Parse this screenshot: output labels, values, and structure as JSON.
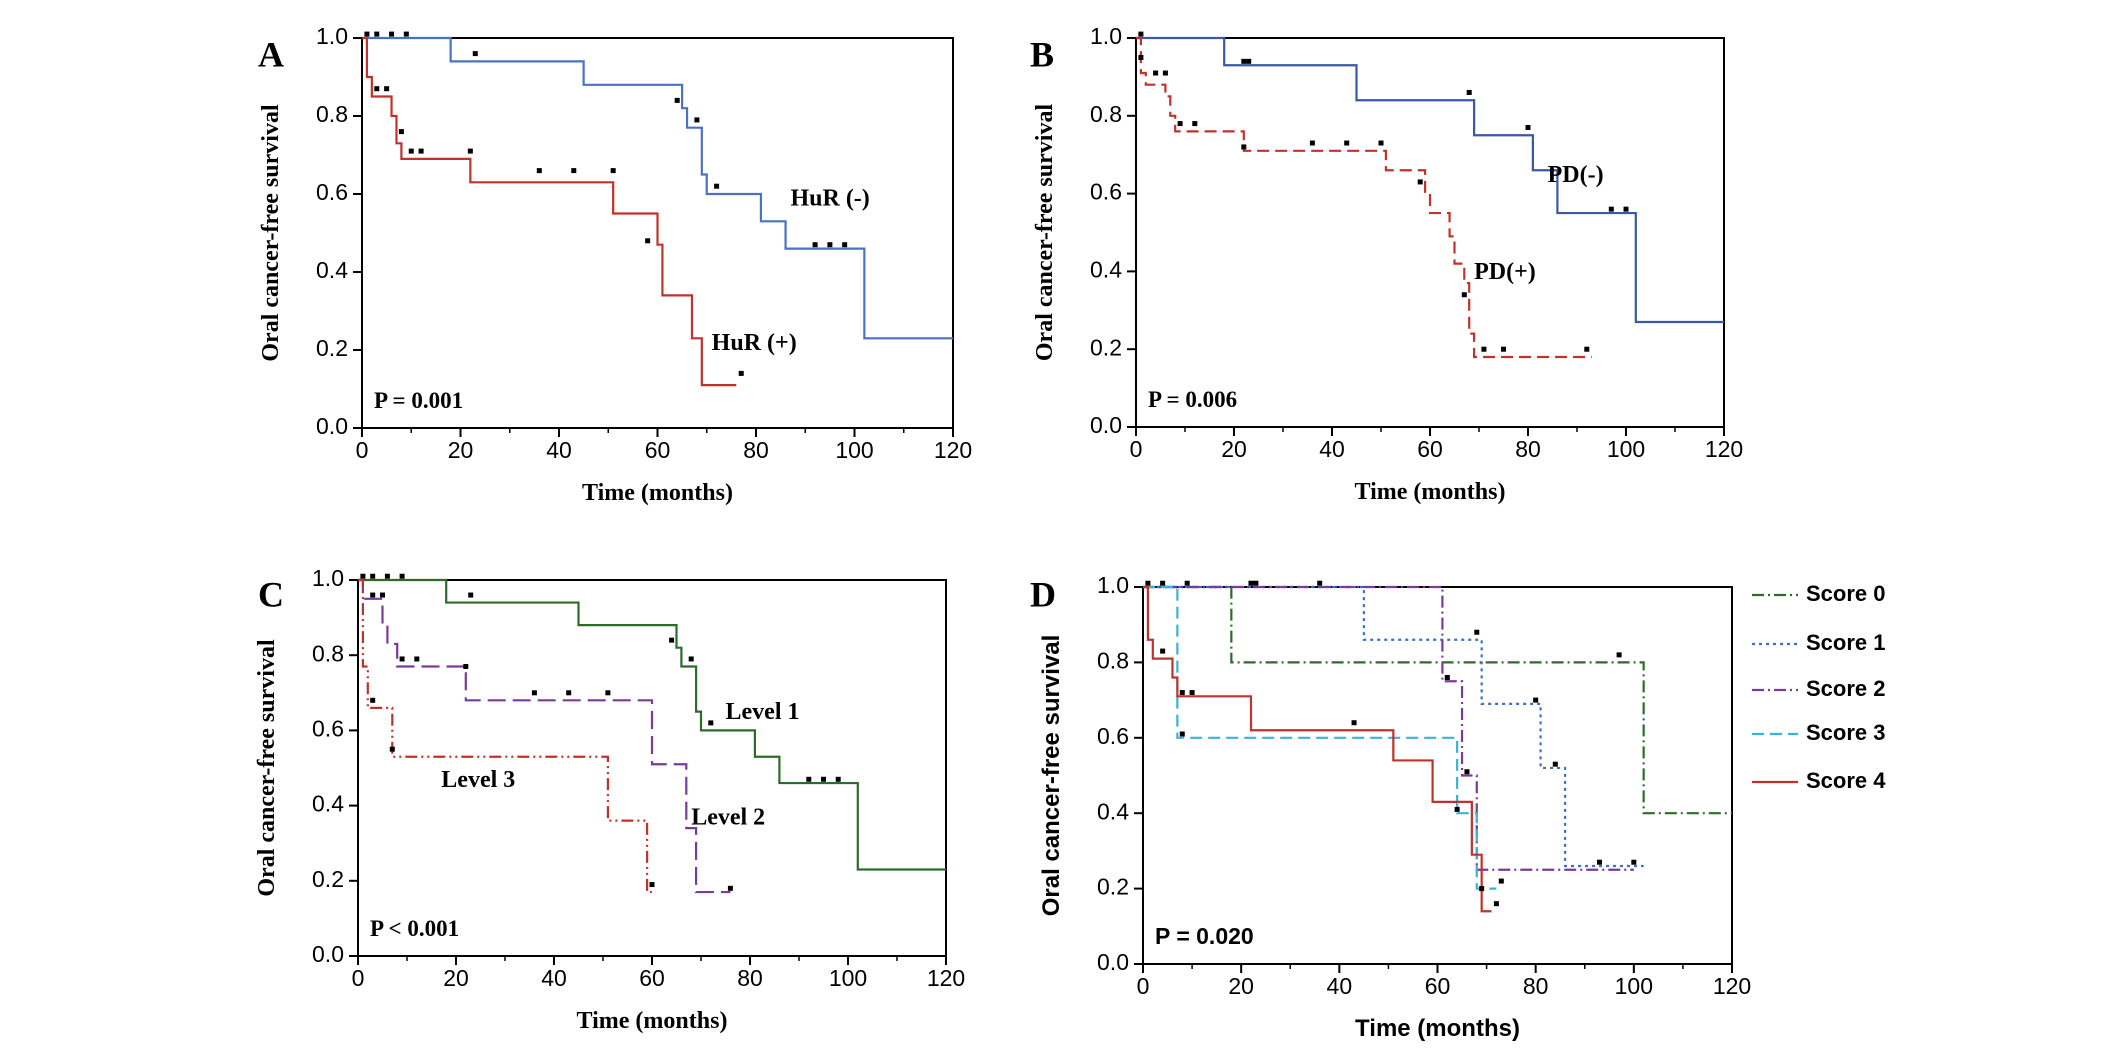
{
  "chart_data": [
    {
      "panel": "A",
      "type": "line",
      "subtype": "kaplan-meier-step",
      "xlabel": "Time (months)",
      "ylabel": "Oral cancer-free survival",
      "xlim": [
        0,
        120
      ],
      "ylim": [
        0,
        1.0
      ],
      "xticks": [
        "0",
        "20",
        "40",
        "60",
        "80",
        "100",
        "120"
      ],
      "yticks": [
        "0.0",
        "0.2",
        "0.4",
        "0.6",
        "0.8",
        "1.0"
      ],
      "pvalue": "P = 0.001",
      "series": [
        {
          "name": "HuR (-)",
          "label": "HuR (-)",
          "color": "#4a72c4",
          "dash": "solid",
          "label_at": [
            87,
            0.57
          ],
          "steps": [
            [
              0,
              1.0
            ],
            [
              18,
              0.94
            ],
            [
              45,
              0.88
            ],
            [
              65,
              0.82
            ],
            [
              66,
              0.77
            ],
            [
              69,
              0.65
            ],
            [
              70,
              0.6
            ],
            [
              81,
              0.53
            ],
            [
              86,
              0.46
            ],
            [
              102,
              0.23
            ],
            [
              120,
              0.23
            ]
          ],
          "censors": [
            [
              1,
              1.01
            ],
            [
              3,
              1.01
            ],
            [
              6,
              1.01
            ],
            [
              9,
              1.01
            ],
            [
              23,
              0.96
            ],
            [
              64,
              0.84
            ],
            [
              68,
              0.79
            ],
            [
              72,
              0.62
            ],
            [
              92,
              0.47
            ],
            [
              95,
              0.47
            ],
            [
              98,
              0.47
            ]
          ]
        },
        {
          "name": "HuR (+)",
          "label": "HuR (+)",
          "color": "#c0322b",
          "dash": "solid",
          "label_at": [
            71,
            0.2
          ],
          "steps": [
            [
              0,
              1.0
            ],
            [
              1,
              0.9
            ],
            [
              2,
              0.85
            ],
            [
              6,
              0.8
            ],
            [
              7,
              0.73
            ],
            [
              8,
              0.69
            ],
            [
              22,
              0.63
            ],
            [
              51,
              0.55
            ],
            [
              60,
              0.47
            ],
            [
              61,
              0.34
            ],
            [
              67,
              0.23
            ],
            [
              69,
              0.11
            ],
            [
              76,
              0.11
            ]
          ],
          "censors": [
            [
              3,
              0.87
            ],
            [
              5,
              0.87
            ],
            [
              8,
              0.76
            ],
            [
              10,
              0.71
            ],
            [
              12,
              0.71
            ],
            [
              22,
              0.71
            ],
            [
              36,
              0.66
            ],
            [
              43,
              0.66
            ],
            [
              51,
              0.66
            ],
            [
              58,
              0.48
            ],
            [
              77,
              0.14
            ]
          ]
        }
      ]
    },
    {
      "panel": "B",
      "type": "line",
      "subtype": "kaplan-meier-step",
      "xlabel": "Time (months)",
      "ylabel": "Oral cancer-free survival",
      "xlim": [
        0,
        120
      ],
      "ylim": [
        0,
        1.0
      ],
      "xticks": [
        "0",
        "20",
        "40",
        "60",
        "80",
        "100",
        "120"
      ],
      "yticks": [
        "0.0",
        "0.2",
        "0.4",
        "0.6",
        "0.8",
        "1.0"
      ],
      "pvalue": "P = 0.006",
      "series": [
        {
          "name": "PD(-)",
          "label": "PD(-)",
          "color": "#3a57a8",
          "dash": "solid",
          "label_at": [
            84,
            0.63
          ],
          "steps": [
            [
              0,
              1.0
            ],
            [
              18,
              0.93
            ],
            [
              45,
              0.84
            ],
            [
              69,
              0.75
            ],
            [
              81,
              0.66
            ],
            [
              86,
              0.55
            ],
            [
              102,
              0.27
            ],
            [
              120,
              0.27
            ]
          ],
          "censors": [
            [
              1,
              1.01
            ],
            [
              22,
              0.94
            ],
            [
              23,
              0.94
            ],
            [
              68,
              0.86
            ],
            [
              80,
              0.77
            ],
            [
              97,
              0.56
            ],
            [
              100,
              0.56
            ]
          ]
        },
        {
          "name": "PD(+)",
          "label": "PD(+)",
          "color": "#c0322b",
          "dash": "dashed",
          "label_at": [
            69,
            0.38
          ],
          "steps": [
            [
              0,
              1.0
            ],
            [
              1,
              0.91
            ],
            [
              2,
              0.88
            ],
            [
              6,
              0.85
            ],
            [
              7,
              0.8
            ],
            [
              8,
              0.76
            ],
            [
              22,
              0.71
            ],
            [
              51,
              0.66
            ],
            [
              59,
              0.6
            ],
            [
              60,
              0.55
            ],
            [
              64,
              0.49
            ],
            [
              65,
              0.42
            ],
            [
              67,
              0.37
            ],
            [
              68,
              0.24
            ],
            [
              69,
              0.18
            ],
            [
              93,
              0.18
            ]
          ],
          "censors": [
            [
              1,
              0.95
            ],
            [
              4,
              0.91
            ],
            [
              6,
              0.91
            ],
            [
              9,
              0.78
            ],
            [
              12,
              0.78
            ],
            [
              22,
              0.72
            ],
            [
              36,
              0.73
            ],
            [
              43,
              0.73
            ],
            [
              50,
              0.73
            ],
            [
              58,
              0.63
            ],
            [
              67,
              0.34
            ],
            [
              71,
              0.2
            ],
            [
              75,
              0.2
            ],
            [
              92,
              0.2
            ]
          ]
        }
      ]
    },
    {
      "panel": "C",
      "type": "line",
      "subtype": "kaplan-meier-step",
      "xlabel": "Time (months)",
      "ylabel": "Oral cancer-free survival",
      "xlim": [
        0,
        120
      ],
      "ylim": [
        0,
        1.0
      ],
      "xticks": [
        "0",
        "20",
        "40",
        "60",
        "80",
        "100",
        "120"
      ],
      "yticks": [
        "0.0",
        "0.2",
        "0.4",
        "0.6",
        "0.8",
        "1.0"
      ],
      "pvalue": "P < 0.001",
      "series": [
        {
          "name": "Level 1",
          "label": "Level 1",
          "color": "#2e6b2a",
          "dash": "solid",
          "label_at": [
            75,
            0.63
          ],
          "steps": [
            [
              0,
              1.0
            ],
            [
              18,
              0.94
            ],
            [
              45,
              0.88
            ],
            [
              65,
              0.82
            ],
            [
              66,
              0.77
            ],
            [
              69,
              0.65
            ],
            [
              70,
              0.6
            ],
            [
              81,
              0.53
            ],
            [
              86,
              0.46
            ],
            [
              102,
              0.23
            ],
            [
              120,
              0.23
            ]
          ],
          "censors": [
            [
              1,
              1.01
            ],
            [
              3,
              1.01
            ],
            [
              6,
              1.01
            ],
            [
              9,
              1.01
            ],
            [
              23,
              0.96
            ],
            [
              64,
              0.84
            ],
            [
              68,
              0.79
            ],
            [
              72,
              0.62
            ],
            [
              92,
              0.47
            ],
            [
              95,
              0.47
            ],
            [
              98,
              0.47
            ]
          ]
        },
        {
          "name": "Level 2",
          "label": "Level 2",
          "color": "#7a3a9c",
          "dash": "longdash",
          "label_at": [
            68,
            0.35
          ],
          "steps": [
            [
              0,
              1.0
            ],
            [
              1,
              0.95
            ],
            [
              5,
              0.88
            ],
            [
              6,
              0.83
            ],
            [
              8,
              0.77
            ],
            [
              22,
              0.68
            ],
            [
              60,
              0.51
            ],
            [
              67,
              0.34
            ],
            [
              69,
              0.17
            ],
            [
              76,
              0.17
            ]
          ],
          "censors": [
            [
              3,
              0.96
            ],
            [
              5,
              0.96
            ],
            [
              9,
              0.79
            ],
            [
              12,
              0.79
            ],
            [
              22,
              0.77
            ],
            [
              36,
              0.7
            ],
            [
              43,
              0.7
            ],
            [
              51,
              0.7
            ],
            [
              76,
              0.18
            ]
          ]
        },
        {
          "name": "Level 3",
          "label": "Level 3",
          "color": "#c0322b",
          "dash": "dashdotdot",
          "label_at": [
            17,
            0.45
          ],
          "steps": [
            [
              0,
              1.0
            ],
            [
              1,
              0.77
            ],
            [
              2,
              0.66
            ],
            [
              7,
              0.53
            ],
            [
              51,
              0.36
            ],
            [
              59,
              0.17
            ],
            [
              60,
              0.17
            ]
          ],
          "censors": [
            [
              3,
              0.68
            ],
            [
              7,
              0.55
            ],
            [
              60,
              0.19
            ]
          ]
        }
      ]
    },
    {
      "panel": "D",
      "type": "line",
      "subtype": "kaplan-meier-step",
      "xlabel": "Time (months)",
      "ylabel": "Oral cancer-free survival",
      "xlim": [
        0,
        120
      ],
      "ylim": [
        0,
        1.0
      ],
      "xticks": [
        "0",
        "20",
        "40",
        "60",
        "80",
        "100",
        "120"
      ],
      "yticks": [
        "0.0",
        "0.2",
        "0.4",
        "0.6",
        "0.8",
        "1.0"
      ],
      "pvalue": "P = 0.020",
      "legend_position": "right",
      "series": [
        {
          "name": "Score 0",
          "color": "#2e6b2a",
          "dash": "dashdot",
          "steps": [
            [
              0,
              1.0
            ],
            [
              18,
              0.8
            ],
            [
              102,
              0.4
            ],
            [
              120,
              0.4
            ]
          ],
          "censors": [
            [
              97,
              0.82
            ]
          ]
        },
        {
          "name": "Score 1",
          "color": "#3a6fc4",
          "dash": "dotted",
          "steps": [
            [
              0,
              1.0
            ],
            [
              45,
              0.86
            ],
            [
              69,
              0.69
            ],
            [
              81,
              0.52
            ],
            [
              86,
              0.26
            ],
            [
              102,
              0.26
            ]
          ],
          "censors": [
            [
              1,
              1.01
            ],
            [
              23,
              1.01
            ],
            [
              36,
              1.01
            ],
            [
              68,
              0.88
            ],
            [
              80,
              0.7
            ],
            [
              84,
              0.53
            ],
            [
              93,
              0.27
            ],
            [
              100,
              0.27
            ]
          ]
        },
        {
          "name": "Score 2",
          "color": "#7a3a9c",
          "dash": "dashdot",
          "steps": [
            [
              0,
              1.0
            ],
            [
              60,
              1.0
            ],
            [
              61,
              0.75
            ],
            [
              65,
              0.5
            ],
            [
              68,
              0.25
            ],
            [
              100,
              0.25
            ]
          ],
          "censors": [
            [
              4,
              1.01
            ],
            [
              9,
              1.01
            ],
            [
              22,
              1.01
            ],
            [
              62,
              0.76
            ],
            [
              66,
              0.51
            ]
          ]
        },
        {
          "name": "Score 3",
          "color": "#3bb3d6",
          "dash": "dashed",
          "steps": [
            [
              0,
              1.0
            ],
            [
              7,
              0.6
            ],
            [
              64,
              0.4
            ],
            [
              68,
              0.2
            ],
            [
              72,
              0.2
            ]
          ],
          "censors": [
            [
              8,
              0.61
            ],
            [
              73,
              0.22
            ]
          ]
        },
        {
          "name": "Score 4",
          "color": "#c0322b",
          "dash": "solid",
          "steps": [
            [
              0,
              1.0
            ],
            [
              1,
              0.86
            ],
            [
              2,
              0.81
            ],
            [
              6,
              0.76
            ],
            [
              7,
              0.71
            ],
            [
              22,
              0.62
            ],
            [
              51,
              0.54
            ],
            [
              59,
              0.43
            ],
            [
              67,
              0.29
            ],
            [
              69,
              0.14
            ],
            [
              71,
              0.14
            ]
          ],
          "censors": [
            [
              4,
              0.83
            ],
            [
              8,
              0.72
            ],
            [
              10,
              0.72
            ],
            [
              43,
              0.64
            ],
            [
              64,
              0.41
            ],
            [
              69,
              0.2
            ],
            [
              72,
              0.16
            ]
          ]
        }
      ]
    }
  ]
}
